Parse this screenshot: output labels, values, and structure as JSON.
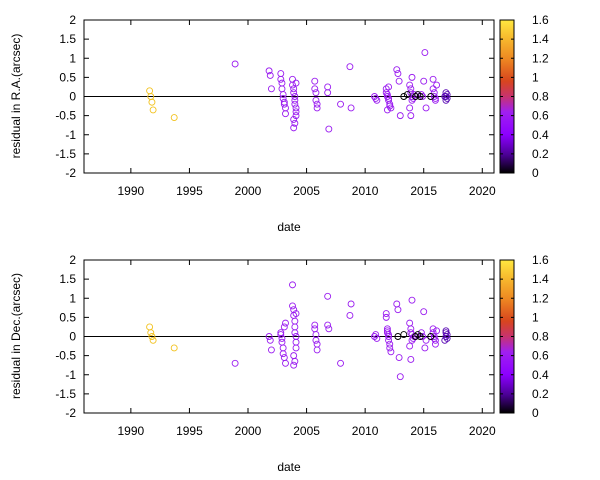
{
  "chart_data": [
    {
      "type": "scatter",
      "xlabel": "date",
      "ylabel": "residual in R.A.(arcsec)",
      "xlim": [
        1986,
        2021
      ],
      "ylim": [
        -2,
        2
      ],
      "xticks": [
        "1990",
        "1995",
        "2000",
        "2005",
        "2010",
        "2015",
        "2020"
      ],
      "yticks": [
        "2",
        "1.5",
        "1",
        "0.5",
        "0",
        "-0.5",
        "-1",
        "-1.5",
        "-2"
      ],
      "zero_line": true,
      "marker": "open-circle",
      "colorbar": {
        "range": [
          0,
          1.6
        ],
        "ticks": [
          "1.6",
          "1.4",
          "1.2",
          "1",
          "0.8",
          "0.6",
          "0.4",
          "0.2",
          "0"
        ],
        "colors": [
          "#000000",
          "#8c00ff",
          "#a020f0",
          "#c8336e",
          "#e0601f",
          "#f0a020",
          "#ffe040"
        ]
      },
      "groups": [
        {
          "c": 1.45,
          "x": [
            1991.6,
            1991.7,
            1991.8,
            1991.9,
            1993.7
          ],
          "y": [
            0.15,
            0.0,
            -0.15,
            -0.35,
            -0.55
          ]
        },
        {
          "c": 0.55,
          "x": [
            1998.9,
            2001.8,
            2001.9,
            2002.0
          ],
          "y": [
            0.85,
            0.67,
            0.55,
            0.2
          ]
        },
        {
          "c": 0.55,
          "x": [
            2002.8,
            2002.8,
            2002.9,
            2002.9,
            2003.0,
            2003.0,
            2003.1,
            2003.1,
            2003.2,
            2003.2
          ],
          "y": [
            0.6,
            0.45,
            0.35,
            0.2,
            0.05,
            -0.05,
            -0.15,
            -0.2,
            -0.3,
            -0.45
          ]
        },
        {
          "c": 0.55,
          "x": [
            2003.8,
            2003.8,
            2003.9,
            2003.9,
            2004.0,
            2004.0,
            2004.0,
            2004.1,
            2004.1,
            2004.1,
            2003.9,
            2004.0,
            2003.9,
            2004.1
          ],
          "y": [
            0.45,
            0.3,
            0.2,
            0.1,
            0.0,
            -0.1,
            -0.2,
            -0.3,
            -0.4,
            -0.5,
            -0.6,
            -0.7,
            -0.82,
            0.35
          ]
        },
        {
          "c": 0.55,
          "x": [
            2005.7,
            2005.7,
            2005.8,
            2005.8,
            2005.9,
            2005.9,
            2006.8,
            2006.8,
            2006.9,
            2007.9,
            2008.8,
            2008.7
          ],
          "y": [
            0.4,
            0.2,
            0.1,
            -0.1,
            -0.2,
            -0.3,
            0.25,
            0.1,
            -0.85,
            -0.2,
            -0.3,
            0.78
          ]
        },
        {
          "c": 0.5,
          "x": [
            2010.8,
            2010.9,
            2011.0,
            2011.8,
            2011.8,
            2011.9,
            2011.9,
            2012.0,
            2012.0,
            2012.1,
            2012.1,
            2012.2,
            2011.9,
            2012.0
          ],
          "y": [
            0.0,
            -0.05,
            -0.1,
            0.2,
            0.1,
            0.05,
            0.0,
            -0.05,
            -0.1,
            -0.2,
            -0.25,
            -0.3,
            -0.35,
            0.25
          ]
        },
        {
          "c": 0.5,
          "x": [
            2012.7,
            2012.8,
            2012.9,
            2013.0,
            2013.8,
            2013.9,
            2013.9,
            2014.0,
            2014.0,
            2013.8,
            2013.9,
            2014.0,
            2014.1,
            2014.2
          ],
          "y": [
            0.7,
            0.6,
            0.4,
            -0.5,
            0.3,
            0.2,
            0.1,
            -0.1,
            0.5,
            -0.3,
            -0.5,
            0.0,
            -0.05,
            0.05
          ]
        },
        {
          "c": 0.45,
          "x": [
            2014.8,
            2014.9,
            2015.0,
            2015.1,
            2015.2,
            2015.8,
            2015.8,
            2015.9,
            2015.9,
            2016.0,
            2016.0,
            2016.1
          ],
          "y": [
            0.05,
            0.0,
            0.4,
            1.15,
            -0.3,
            0.45,
            0.2,
            0.1,
            0.0,
            -0.05,
            -0.1,
            0.3
          ]
        },
        {
          "c": 0.3,
          "x": [
            2016.9,
            2017.0,
            2016.9,
            2017.0,
            2016.8,
            2016.9
          ],
          "y": [
            0.1,
            0.05,
            0.0,
            -0.05,
            0.0,
            -0.1
          ]
        },
        {
          "c": 0.08,
          "x": [
            2014.3,
            2014.5,
            2014.7,
            2015.6,
            2013.3,
            2013.6
          ],
          "y": [
            0.0,
            0.05,
            0.0,
            0.0,
            0.0,
            0.05
          ]
        }
      ]
    },
    {
      "type": "scatter",
      "xlabel": "date",
      "ylabel": "residual in Dec.(arcsec)",
      "xlim": [
        1986,
        2021
      ],
      "ylim": [
        -2,
        2
      ],
      "xticks": [
        "1990",
        "1995",
        "2000",
        "2005",
        "2010",
        "2015",
        "2020"
      ],
      "yticks": [
        "2",
        "1.5",
        "1",
        "0.5",
        "0",
        "-0.5",
        "-1",
        "-1.5",
        "-2"
      ],
      "zero_line": true,
      "marker": "open-circle",
      "colorbar": {
        "range": [
          0,
          1.6
        ],
        "ticks": [
          "1.6",
          "1.4",
          "1.2",
          "1",
          "0.8",
          "0.6",
          "0.4",
          "0.2",
          "0"
        ],
        "colors": [
          "#000000",
          "#8c00ff",
          "#a020f0",
          "#c8336e",
          "#e0601f",
          "#f0a020",
          "#ffe040"
        ]
      },
      "groups": [
        {
          "c": 1.45,
          "x": [
            1991.6,
            1991.7,
            1991.8,
            1991.9,
            1993.7
          ],
          "y": [
            0.25,
            0.1,
            0.0,
            -0.1,
            -0.3
          ]
        },
        {
          "c": 0.55,
          "x": [
            1998.9,
            2001.8,
            2001.9,
            2002.0
          ],
          "y": [
            -0.7,
            0.0,
            -0.1,
            -0.35
          ]
        },
        {
          "c": 0.55,
          "x": [
            2002.8,
            2002.8,
            2002.9,
            2002.9,
            2003.0,
            2003.0,
            2003.1,
            2003.1,
            2003.2,
            2003.2
          ],
          "y": [
            0.1,
            0.05,
            -0.05,
            -0.15,
            -0.3,
            -0.45,
            -0.55,
            0.25,
            0.35,
            -0.7
          ]
        },
        {
          "c": 0.55,
          "x": [
            2003.8,
            2003.8,
            2003.9,
            2003.9,
            2004.0,
            2004.0,
            2004.0,
            2004.1,
            2004.1,
            2004.1,
            2003.9,
            2004.0,
            2003.9,
            2004.1
          ],
          "y": [
            1.35,
            0.8,
            0.7,
            0.55,
            0.4,
            0.25,
            0.1,
            0.0,
            -0.15,
            -0.3,
            -0.5,
            -0.65,
            -0.75,
            0.6
          ]
        },
        {
          "c": 0.55,
          "x": [
            2005.7,
            2005.7,
            2005.8,
            2005.8,
            2005.9,
            2005.9,
            2006.8,
            2006.8,
            2006.9,
            2007.9,
            2008.8,
            2008.7
          ],
          "y": [
            0.3,
            0.2,
            0.05,
            -0.1,
            -0.2,
            -0.35,
            1.05,
            0.3,
            0.2,
            -0.7,
            0.85,
            0.55
          ]
        },
        {
          "c": 0.5,
          "x": [
            2010.8,
            2010.9,
            2011.0,
            2011.8,
            2011.8,
            2011.9,
            2011.9,
            2012.0,
            2012.0,
            2012.1,
            2012.1,
            2012.2,
            2011.9,
            2012.0
          ],
          "y": [
            0.0,
            0.05,
            -0.05,
            0.6,
            0.5,
            0.2,
            0.1,
            0.0,
            -0.1,
            -0.2,
            -0.3,
            -0.4,
            0.15,
            0.05
          ]
        },
        {
          "c": 0.5,
          "x": [
            2012.7,
            2012.8,
            2012.9,
            2013.0,
            2013.8,
            2013.9,
            2013.9,
            2014.0,
            2014.0,
            2013.8,
            2013.9,
            2014.0,
            2014.1,
            2014.2
          ],
          "y": [
            0.85,
            0.7,
            -0.55,
            -1.05,
            0.35,
            0.2,
            0.1,
            -0.1,
            0.95,
            -0.25,
            -0.6,
            0.05,
            -0.05,
            0.0
          ]
        },
        {
          "c": 0.45,
          "x": [
            2014.8,
            2014.9,
            2015.0,
            2015.1,
            2015.2,
            2015.8,
            2015.8,
            2015.9,
            2015.9,
            2016.0,
            2016.0,
            2016.1
          ],
          "y": [
            0.1,
            0.0,
            0.65,
            -0.3,
            -0.1,
            0.2,
            0.1,
            0.0,
            -0.05,
            -0.1,
            -0.2,
            0.15
          ]
        },
        {
          "c": 0.3,
          "x": [
            2016.9,
            2017.0,
            2016.9,
            2017.0,
            2016.8,
            2016.9
          ],
          "y": [
            0.15,
            0.05,
            0.0,
            -0.05,
            -0.1,
            0.1
          ]
        },
        {
          "c": 0.08,
          "x": [
            2014.3,
            2014.5,
            2014.7,
            2015.6,
            2012.8,
            2013.3
          ],
          "y": [
            0.0,
            0.05,
            0.0,
            0.0,
            0.0,
            0.05
          ]
        }
      ]
    }
  ]
}
